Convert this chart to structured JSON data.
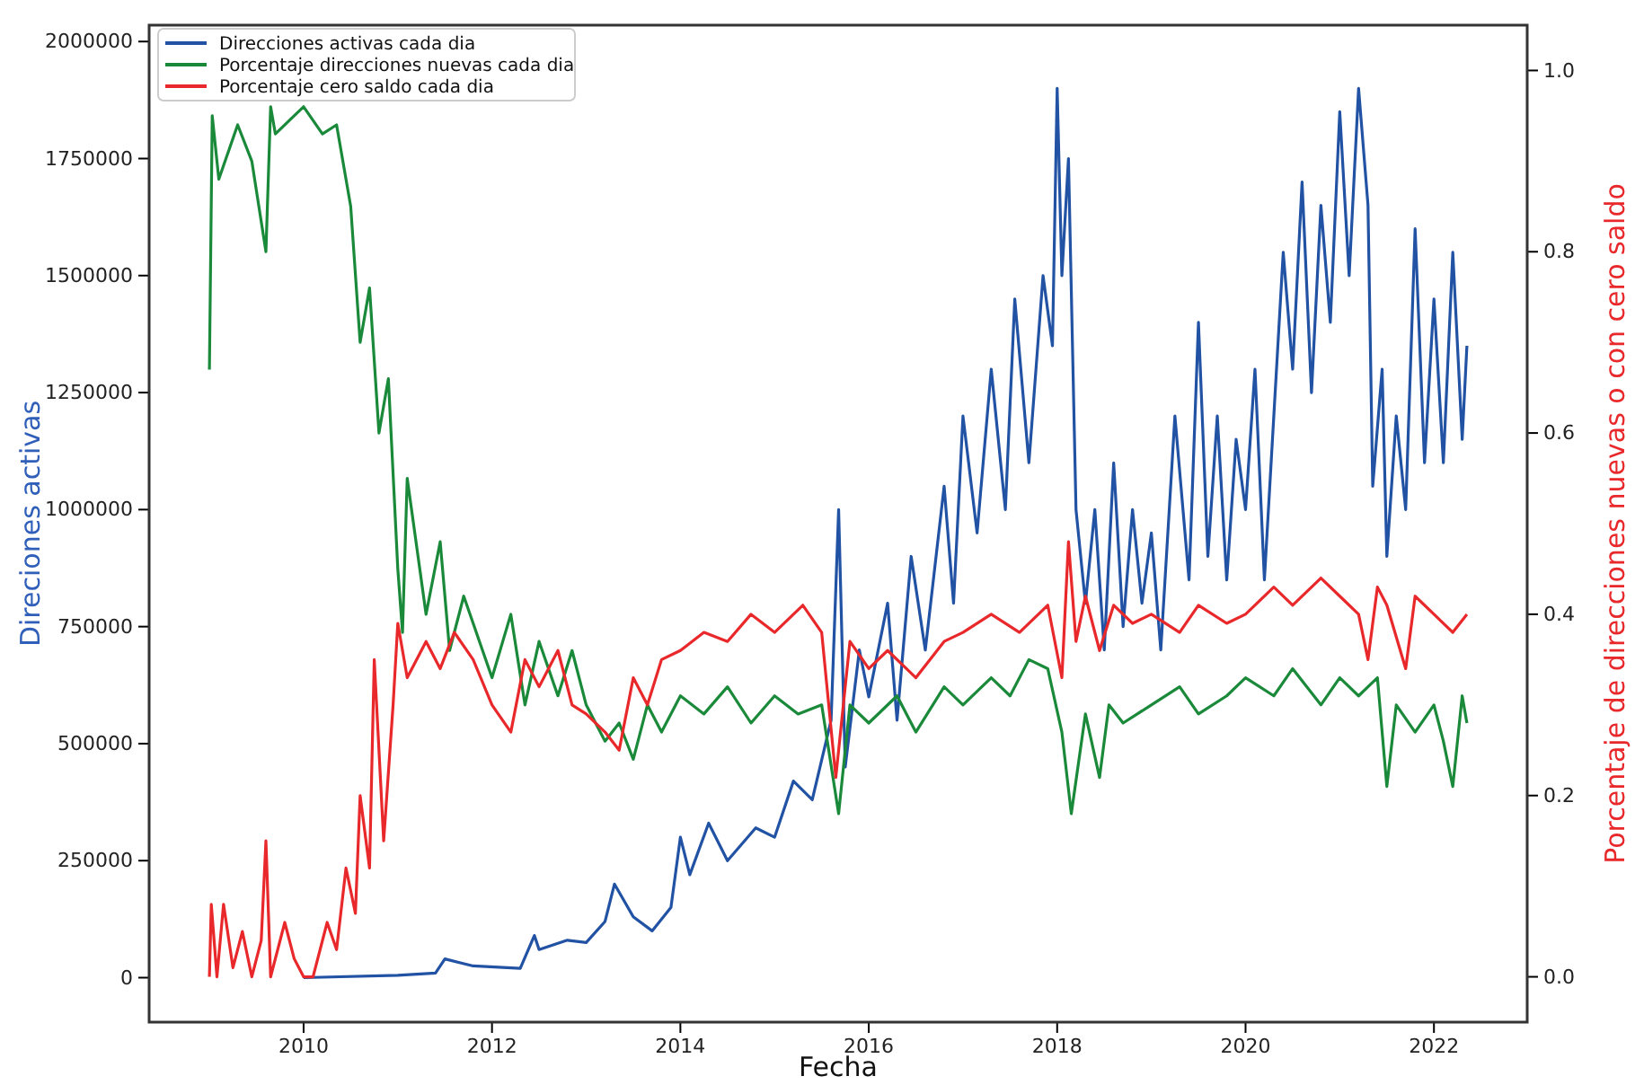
{
  "chart_data": {
    "type": "line",
    "xlabel": "Fecha",
    "ylabel": "Direciones activas",
    "y2label": "Porcentaje de direcciones nuevas o con cero saldo",
    "xlim": [
      2008.36,
      2022.99
    ],
    "xticks": [
      2010,
      2012,
      2014,
      2016,
      2018,
      2020,
      2022
    ],
    "ylim": [
      -95000,
      2035000
    ],
    "yticks": [
      0,
      250000,
      500000,
      750000,
      1000000,
      1250000,
      1500000,
      1750000,
      2000000
    ],
    "y2lim": [
      -0.05,
      1.05
    ],
    "y2ticks": [
      {
        "value": 0,
        "label": "0.0"
      },
      0.2,
      0.4,
      0.6,
      0.8,
      {
        "value": 1,
        "label": "1.0"
      }
    ],
    "legend": "top left",
    "grid": false,
    "line_style": "solid",
    "marker": "none",
    "series": [
      {
        "name": "Direcciones activas cada dia",
        "color": "#2152a3",
        "x": [
          2010.0,
          2011.0,
          2011.4,
          2011.5,
          2011.8,
          2012.3,
          2012.45,
          2012.5,
          2012.8,
          2013.0,
          2013.2,
          2013.3,
          2013.5,
          2013.7,
          2013.9,
          2014.0,
          2014.1,
          2014.3,
          2014.5,
          2014.8,
          2015.0,
          2015.2,
          2015.4,
          2015.6,
          2015.68,
          2015.75,
          2015.9,
          2016.0,
          2016.2,
          2016.3,
          2016.45,
          2016.6,
          2016.8,
          2016.9,
          2017.0,
          2017.15,
          2017.3,
          2017.45,
          2017.55,
          2017.7,
          2017.85,
          2017.95,
          2018.0,
          2018.05,
          2018.12,
          2018.2,
          2018.3,
          2018.4,
          2018.5,
          2018.6,
          2018.7,
          2018.8,
          2018.9,
          2019.0,
          2019.1,
          2019.25,
          2019.4,
          2019.5,
          2019.6,
          2019.7,
          2019.8,
          2019.9,
          2020.0,
          2020.1,
          2020.2,
          2020.3,
          2020.4,
          2020.5,
          2020.6,
          2020.7,
          2020.8,
          2020.9,
          2021.0,
          2021.1,
          2021.2,
          2021.3,
          2021.35,
          2021.45,
          2021.5,
          2021.6,
          2021.7,
          2021.8,
          2021.9,
          2022.0,
          2022.1,
          2022.2,
          2022.3,
          2022.35
        ],
        "axis": "y",
        "values": [
          0,
          5000,
          10000,
          40000,
          25000,
          20000,
          90000,
          60000,
          80000,
          75000,
          120000,
          200000,
          130000,
          100000,
          150000,
          300000,
          220000,
          330000,
          250000,
          320000,
          300000,
          420000,
          380000,
          550000,
          1000000,
          450000,
          700000,
          600000,
          800000,
          550000,
          900000,
          700000,
          1050000,
          800000,
          1200000,
          950000,
          1300000,
          1000000,
          1450000,
          1100000,
          1500000,
          1350000,
          1900000,
          1500000,
          1750000,
          1000000,
          800000,
          1000000,
          700000,
          1100000,
          750000,
          1000000,
          800000,
          950000,
          700000,
          1200000,
          850000,
          1400000,
          900000,
          1200000,
          850000,
          1150000,
          1000000,
          1300000,
          850000,
          1200000,
          1550000,
          1300000,
          1700000,
          1250000,
          1650000,
          1400000,
          1850000,
          1500000,
          1900000,
          1650000,
          1050000,
          1300000,
          900000,
          1200000,
          1000000,
          1600000,
          1100000,
          1450000,
          1100000,
          1550000,
          1150000,
          1350000
        ]
      },
      {
        "name": "Porcentaje direcciones nuevas cada dia",
        "color": "#1a8a3a",
        "axis": "y2",
        "x": [
          2009.0,
          2009.03,
          2009.1,
          2009.3,
          2009.45,
          2009.6,
          2009.65,
          2009.7,
          2009.9,
          2010.0,
          2010.2,
          2010.35,
          2010.5,
          2010.6,
          2010.7,
          2010.8,
          2010.9,
          2011.0,
          2011.05,
          2011.1,
          2011.3,
          2011.45,
          2011.55,
          2011.7,
          2012.0,
          2012.2,
          2012.35,
          2012.5,
          2012.7,
          2012.85,
          2013.0,
          2013.2,
          2013.35,
          2013.5,
          2013.65,
          2013.8,
          2014.0,
          2014.25,
          2014.5,
          2014.75,
          2015.0,
          2015.25,
          2015.5,
          2015.68,
          2015.8,
          2016.0,
          2016.3,
          2016.5,
          2016.8,
          2017.0,
          2017.3,
          2017.5,
          2017.7,
          2017.9,
          2018.05,
          2018.15,
          2018.3,
          2018.45,
          2018.55,
          2018.7,
          2019.0,
          2019.3,
          2019.5,
          2019.8,
          2020.0,
          2020.3,
          2020.5,
          2020.8,
          2021.0,
          2021.2,
          2021.4,
          2021.5,
          2021.6,
          2021.8,
          2022.0,
          2022.1,
          2022.2,
          2022.3,
          2022.35
        ],
        "values": [
          0.67,
          0.95,
          0.88,
          0.94,
          0.9,
          0.8,
          0.96,
          0.93,
          0.95,
          0.96,
          0.93,
          0.94,
          0.85,
          0.7,
          0.76,
          0.6,
          0.66,
          0.45,
          0.38,
          0.55,
          0.4,
          0.48,
          0.36,
          0.42,
          0.33,
          0.4,
          0.3,
          0.37,
          0.31,
          0.36,
          0.3,
          0.26,
          0.28,
          0.24,
          0.3,
          0.27,
          0.31,
          0.29,
          0.32,
          0.28,
          0.31,
          0.29,
          0.3,
          0.18,
          0.3,
          0.28,
          0.31,
          0.27,
          0.32,
          0.3,
          0.33,
          0.31,
          0.35,
          0.34,
          0.27,
          0.18,
          0.29,
          0.22,
          0.3,
          0.28,
          0.3,
          0.32,
          0.29,
          0.31,
          0.33,
          0.31,
          0.34,
          0.3,
          0.33,
          0.31,
          0.33,
          0.21,
          0.3,
          0.27,
          0.3,
          0.26,
          0.21,
          0.31,
          0.28
        ]
      },
      {
        "name": "Porcentaje cero saldo cada dia",
        "color": "#e8282a",
        "axis": "y2",
        "x": [
          2009.0,
          2009.02,
          2009.08,
          2009.15,
          2009.25,
          2009.35,
          2009.45,
          2009.55,
          2009.6,
          2009.65,
          2009.8,
          2009.9,
          2010.0,
          2010.1,
          2010.25,
          2010.35,
          2010.45,
          2010.55,
          2010.6,
          2010.7,
          2010.75,
          2010.85,
          2010.95,
          2011.0,
          2011.1,
          2011.3,
          2011.45,
          2011.6,
          2011.8,
          2012.0,
          2012.2,
          2012.35,
          2012.5,
          2012.7,
          2012.85,
          2013.0,
          2013.2,
          2013.35,
          2013.5,
          2013.65,
          2013.8,
          2014.0,
          2014.25,
          2014.5,
          2014.75,
          2015.0,
          2015.3,
          2015.5,
          2015.65,
          2015.8,
          2016.0,
          2016.2,
          2016.5,
          2016.8,
          2017.0,
          2017.3,
          2017.6,
          2017.9,
          2018.05,
          2018.12,
          2018.2,
          2018.3,
          2018.45,
          2018.6,
          2018.8,
          2019.0,
          2019.3,
          2019.5,
          2019.8,
          2020.0,
          2020.3,
          2020.5,
          2020.8,
          2021.0,
          2021.2,
          2021.3,
          2021.4,
          2021.5,
          2021.7,
          2021.8,
          2022.0,
          2022.2,
          2022.35
        ],
        "values": [
          0.0,
          0.08,
          0.0,
          0.08,
          0.01,
          0.05,
          0.0,
          0.04,
          0.15,
          0.0,
          0.06,
          0.02,
          0.0,
          0.0,
          0.06,
          0.03,
          0.12,
          0.07,
          0.2,
          0.12,
          0.35,
          0.15,
          0.3,
          0.39,
          0.33,
          0.37,
          0.34,
          0.38,
          0.35,
          0.3,
          0.27,
          0.35,
          0.32,
          0.36,
          0.3,
          0.29,
          0.27,
          0.25,
          0.33,
          0.3,
          0.35,
          0.36,
          0.38,
          0.37,
          0.4,
          0.38,
          0.41,
          0.38,
          0.22,
          0.37,
          0.34,
          0.36,
          0.33,
          0.37,
          0.38,
          0.4,
          0.38,
          0.41,
          0.33,
          0.48,
          0.37,
          0.42,
          0.36,
          0.41,
          0.39,
          0.4,
          0.38,
          0.41,
          0.39,
          0.4,
          0.43,
          0.41,
          0.44,
          0.42,
          0.4,
          0.35,
          0.43,
          0.41,
          0.34,
          0.42,
          0.4,
          0.38,
          0.4
        ]
      }
    ]
  }
}
